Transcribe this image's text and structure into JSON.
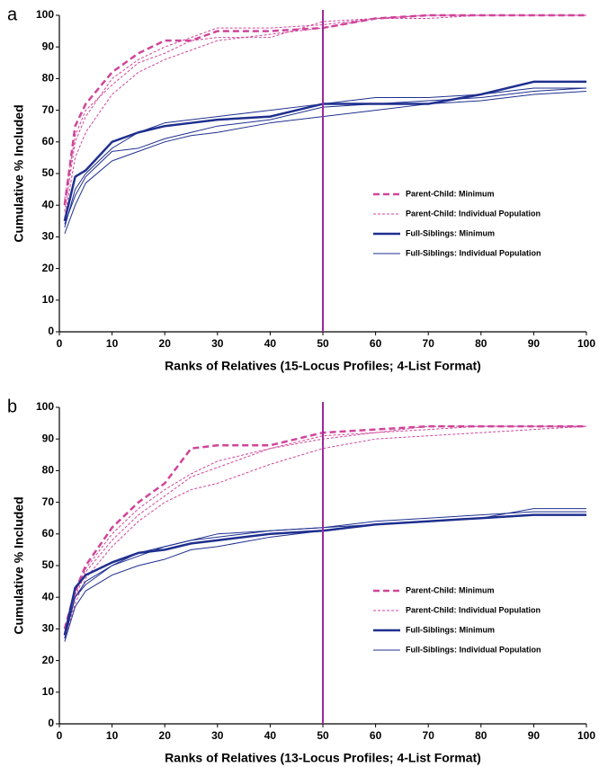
{
  "chart_data": [
    {
      "type": "line",
      "panel_label": "a",
      "x_label": "Ranks of Relatives (15-Locus Profiles; 4-List Format)",
      "y_label": "Cumulative % Included",
      "x": [
        1,
        3,
        5,
        10,
        15,
        20,
        25,
        30,
        40,
        50,
        60,
        70,
        80,
        90,
        100
      ],
      "xlim": [
        0,
        100
      ],
      "ylim": [
        0,
        100
      ],
      "xticks": [
        0,
        10,
        20,
        30,
        40,
        50,
        60,
        70,
        80,
        90,
        100
      ],
      "yticks": [
        0,
        10,
        20,
        30,
        40,
        50,
        60,
        70,
        80,
        90,
        100
      ],
      "vline": 50,
      "vline_color": "#9b2a9b",
      "legend": "center right",
      "series": [
        {
          "name": "Parent-Child: Minimum",
          "color": "#d0459a",
          "dash": true,
          "width": 2.5,
          "values": [
            40,
            65,
            72,
            82,
            88,
            92,
            92,
            95,
            95,
            96,
            99,
            100,
            100,
            100,
            100
          ]
        },
        {
          "name": "Parent-Child: Individual Population",
          "color": "#d0459a",
          "dash": true,
          "width": 1,
          "values": [
            [
              38,
              60,
              68,
              80,
              86,
              90,
              93,
              96,
              96,
              97,
              99,
              100,
              100,
              100,
              100
            ],
            [
              36,
              55,
              63,
              75,
              82,
              86,
              89,
              92,
              94,
              96,
              99,
              100,
              100,
              100,
              100
            ],
            [
              42,
              62,
              70,
              78,
              85,
              88,
              92,
              93,
              93,
              98,
              99,
              99,
              100,
              100,
              100
            ]
          ]
        },
        {
          "name": "Full-Siblings: Minimum",
          "color": "#1f2f8f",
          "dash": false,
          "width": 2.5,
          "values": [
            35,
            49,
            51,
            60,
            63,
            65,
            66,
            67,
            68,
            72,
            72,
            72,
            75,
            79,
            79
          ]
        },
        {
          "name": "Full-Siblings: Individual Population",
          "color": "#1f2f8f",
          "dash": false,
          "width": 1,
          "values": [
            [
              33,
              45,
              50,
              58,
              63,
              66,
              67,
              68,
              70,
              72,
              74,
              74,
              75,
              77,
              77
            ],
            [
              31,
              40,
              47,
              54,
              57,
              60,
              62,
              63,
              66,
              68,
              70,
              72,
              73,
              75,
              76
            ],
            [
              34,
              43,
              49,
              57,
              58,
              61,
              63,
              65,
              67,
              71,
              72,
              73,
              74,
              76,
              77
            ]
          ]
        }
      ]
    },
    {
      "type": "line",
      "panel_label": "b",
      "x_label": "Ranks of Relatives (13-Locus Profiles; 4-List Format)",
      "y_label": "Cumulative % Included",
      "x": [
        1,
        3,
        5,
        10,
        15,
        20,
        25,
        30,
        40,
        50,
        60,
        70,
        80,
        90,
        100
      ],
      "xlim": [
        0,
        100
      ],
      "ylim": [
        0,
        100
      ],
      "xticks": [
        0,
        10,
        20,
        30,
        40,
        50,
        60,
        70,
        80,
        90,
        100
      ],
      "yticks": [
        0,
        10,
        20,
        30,
        40,
        50,
        60,
        70,
        80,
        90,
        100
      ],
      "vline": 50,
      "vline_color": "#9b2a9b",
      "legend": "center right",
      "series": [
        {
          "name": "Parent-Child: Minimum",
          "color": "#d0459a",
          "dash": true,
          "width": 2.5,
          "values": [
            30,
            42,
            50,
            62,
            70,
            76,
            87,
            88,
            88,
            92,
            93,
            94,
            94,
            94,
            94
          ]
        },
        {
          "name": "Parent-Child: Individual Population",
          "color": "#d0459a",
          "dash": true,
          "width": 1,
          "values": [
            [
              28,
              40,
              48,
              58,
              66,
              72,
              78,
              81,
              87,
              90,
              92,
              94,
              94,
              94,
              94
            ],
            [
              27,
              38,
              46,
              56,
              64,
              70,
              74,
              76,
              82,
              87,
              90,
              91,
              92,
              93,
              94
            ],
            [
              30,
              41,
              49,
              60,
              68,
              74,
              79,
              83,
              87,
              91,
              92,
              93,
              94,
              94,
              94
            ]
          ]
        },
        {
          "name": "Full-Siblings: Minimum",
          "color": "#1f2f8f",
          "dash": false,
          "width": 2.5,
          "values": [
            28,
            43,
            47,
            51,
            54,
            55,
            57,
            58,
            60,
            61,
            63,
            64,
            65,
            66,
            66
          ]
        },
        {
          "name": "Full-Siblings: Individual Population",
          "color": "#1f2f8f",
          "dash": false,
          "width": 1,
          "values": [
            [
              27,
              40,
              45,
              50,
              53,
              56,
              58,
              59,
              61,
              62,
              64,
              65,
              66,
              67,
              67
            ],
            [
              26,
              37,
              42,
              47,
              50,
              52,
              55,
              56,
              59,
              61,
              63,
              64,
              65,
              66,
              66
            ],
            [
              27,
              40,
              44,
              50,
              54,
              56,
              58,
              60,
              61,
              62,
              63,
              64,
              65,
              68,
              68
            ]
          ]
        }
      ]
    }
  ]
}
